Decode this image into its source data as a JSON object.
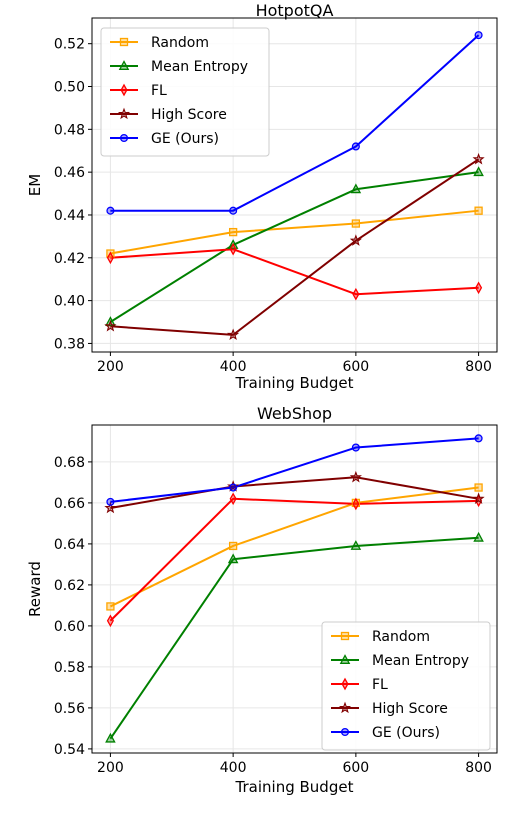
{
  "chart_data": [
    {
      "type": "line",
      "title": "HotpotQA",
      "xlabel": "Training Budget",
      "ylabel": "EM",
      "x": [
        200,
        400,
        600,
        800
      ],
      "xticks": [
        "200",
        "400",
        "600",
        "800"
      ],
      "xlim": [
        170,
        830
      ],
      "ylim": [
        0.376,
        0.532
      ],
      "yticks": [
        "0.38",
        "0.40",
        "0.42",
        "0.44",
        "0.46",
        "0.48",
        "0.50",
        "0.52"
      ],
      "grid": true,
      "legend": "top-left",
      "series": [
        {
          "name": "Random",
          "color": "#ffa500",
          "marker": "square",
          "values": [
            0.422,
            0.432,
            0.436,
            0.442
          ]
        },
        {
          "name": "Mean Entropy",
          "color": "#008000",
          "marker": "triangle",
          "values": [
            0.39,
            0.426,
            0.452,
            0.46
          ]
        },
        {
          "name": "FL",
          "color": "#ff0000",
          "marker": "thin-diamond",
          "values": [
            0.42,
            0.424,
            0.403,
            0.406
          ]
        },
        {
          "name": "High Score",
          "color": "#800000",
          "marker": "star",
          "values": [
            0.388,
            0.384,
            0.428,
            0.466
          ]
        },
        {
          "name": "GE (Ours)",
          "color": "#0000ff",
          "marker": "circle",
          "values": [
            0.442,
            0.442,
            0.472,
            0.524
          ]
        }
      ]
    },
    {
      "type": "line",
      "title": "WebShop",
      "xlabel": "Training Budget",
      "ylabel": "Reward",
      "x": [
        200,
        400,
        600,
        800
      ],
      "xticks": [
        "200",
        "400",
        "600",
        "800"
      ],
      "xlim": [
        170,
        830
      ],
      "ylim": [
        0.538,
        0.698
      ],
      "yticks": [
        "0.54",
        "0.56",
        "0.58",
        "0.60",
        "0.62",
        "0.64",
        "0.66",
        "0.68"
      ],
      "grid": true,
      "legend": "bottom-right",
      "series": [
        {
          "name": "Random",
          "color": "#ffa500",
          "marker": "square",
          "values": [
            0.6095,
            0.639,
            0.66,
            0.6675
          ]
        },
        {
          "name": "Mean Entropy",
          "color": "#008000",
          "marker": "triangle",
          "values": [
            0.545,
            0.6325,
            0.639,
            0.643
          ]
        },
        {
          "name": "FL",
          "color": "#ff0000",
          "marker": "thin-diamond",
          "values": [
            0.6025,
            0.662,
            0.6595,
            0.661
          ]
        },
        {
          "name": "High Score",
          "color": "#800000",
          "marker": "star",
          "values": [
            0.6575,
            0.668,
            0.6725,
            0.662
          ]
        },
        {
          "name": "GE (Ours)",
          "color": "#0000ff",
          "marker": "circle",
          "values": [
            0.6605,
            0.6675,
            0.687,
            0.6915
          ]
        }
      ]
    }
  ]
}
